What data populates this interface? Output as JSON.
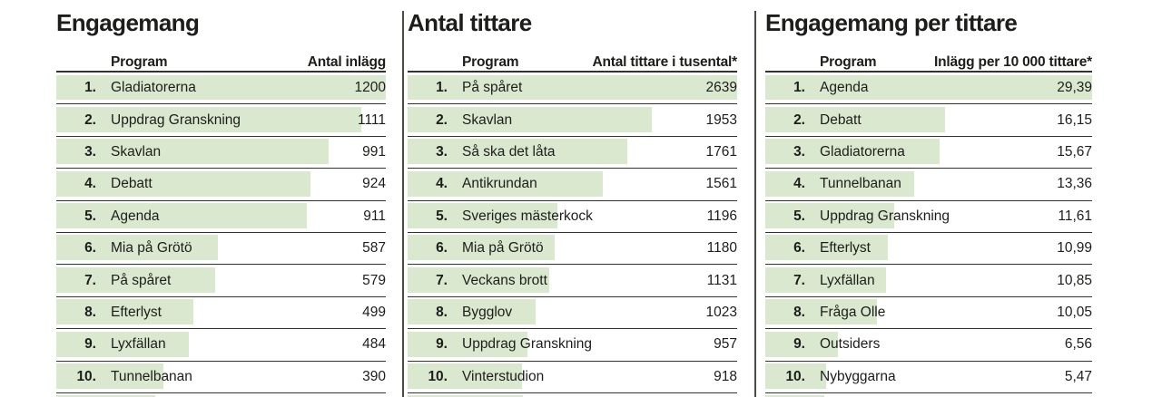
{
  "colors": {
    "bar_fill": "#dbe8d0",
    "rule": "#32322e",
    "divider": "#4b4b45",
    "text": "#1d1d1b",
    "background": "#ffffff"
  },
  "chart_data": [
    {
      "type": "bar",
      "title": "Engagemang",
      "columns": {
        "program": "Program",
        "value": "Antal inlägg"
      },
      "ranks": [
        "1.",
        "2.",
        "3.",
        "4.",
        "5.",
        "6.",
        "7.",
        "8.",
        "9.",
        "10."
      ],
      "categories": [
        "Gladiatorerna",
        "Uppdrag Granskning",
        "Skavlan",
        "Debatt",
        "Agenda",
        "Mia på Grötö",
        "På spåret",
        "Efterlyst",
        "Lyxfällan",
        "Tunnelbanan"
      ],
      "values": [
        1200,
        1111,
        991,
        924,
        911,
        587,
        579,
        499,
        484,
        390
      ],
      "value_labels": [
        "1200",
        "1111",
        "991",
        "924",
        "911",
        "587",
        "579",
        "499",
        "484",
        "390"
      ],
      "bar_max": 1200,
      "cropped_next_bar_fraction": 0.3,
      "legend": "none",
      "grid": "row rules only"
    },
    {
      "type": "bar",
      "title": "Antal tittare",
      "columns": {
        "program": "Program",
        "value": "Antal tittare i tusental*"
      },
      "ranks": [
        "1.",
        "2.",
        "3.",
        "4.",
        "5.",
        "6.",
        "7.",
        "8.",
        "9.",
        "10."
      ],
      "categories": [
        "På spåret",
        "Skavlan",
        "Så ska det låta",
        "Antikrundan",
        "Sveriges mästerkock",
        "Mia på Grötö",
        "Veckans brott",
        "Bygglov",
        "Uppdrag Granskning",
        "Vinterstudion"
      ],
      "values": [
        2639,
        1953,
        1761,
        1561,
        1196,
        1180,
        1131,
        1023,
        957,
        918
      ],
      "value_labels": [
        "2639",
        "1953",
        "1761",
        "1561",
        "1196",
        "1180",
        "1131",
        "1023",
        "957",
        "918"
      ],
      "bar_max": 2639,
      "cropped_next_bar_fraction": 0.35,
      "legend": "none",
      "grid": "row rules only"
    },
    {
      "type": "bar",
      "title": "Engagemang per tittare",
      "columns": {
        "program": "Program",
        "value": "Inlägg per 10 000 tittare*"
      },
      "ranks": [
        "1.",
        "2.",
        "3.",
        "4.",
        "5.",
        "6.",
        "7.",
        "8.",
        "9.",
        "10."
      ],
      "categories": [
        "Agenda",
        "Debatt",
        "Gladiatorerna",
        "Tunnelbanan",
        "Uppdrag Granskning",
        "Efterlyst",
        "Lyxfällan",
        "Fråga Olle",
        "Outsiders",
        "Nybyggarna"
      ],
      "values": [
        29.39,
        16.15,
        15.67,
        13.36,
        11.61,
        10.99,
        10.85,
        10.05,
        6.56,
        5.47
      ],
      "value_labels": [
        "29,39",
        "16,15",
        "15,67",
        "13,36",
        "11,61",
        "10,99",
        "10,85",
        "10,05",
        "6,56",
        "5,47"
      ],
      "bar_max": 29.39,
      "cropped_next_bar_fraction": 0.18,
      "legend": "none",
      "grid": "row rules only"
    }
  ]
}
